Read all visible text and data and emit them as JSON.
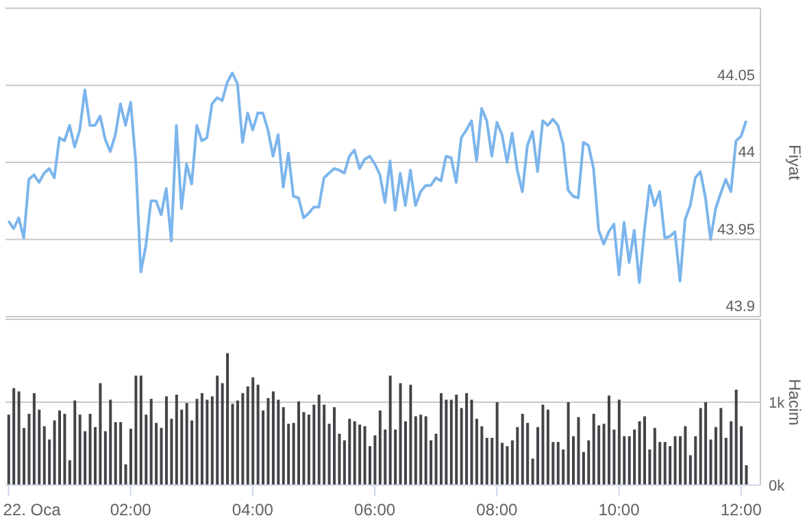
{
  "chart_data": [
    {
      "type": "line",
      "ylabel": "Fiyat",
      "color": "#7cb5ec",
      "marker": "none",
      "grid": "y",
      "tick_labels": "y",
      "xlim": [
        "--01-21T23:57",
        "--01-22T12:19"
      ],
      "ylim": [
        43.9,
        44.1
      ],
      "yticks": [
        43.9,
        43.95,
        44,
        44.05
      ],
      "x": [
        "--01-22T00:00",
        "--01-22T00:05",
        "--01-22T00:10",
        "--01-22T00:15",
        "--01-22T00:20",
        "--01-22T00:25",
        "--01-22T00:30",
        "--01-22T00:35",
        "--01-22T00:40",
        "--01-22T00:45",
        "--01-22T00:50",
        "--01-22T00:55",
        "--01-22T01:00",
        "--01-22T01:05",
        "--01-22T01:10",
        "--01-22T01:15",
        "--01-22T01:20",
        "--01-22T01:25",
        "--01-22T01:30",
        "--01-22T01:35",
        "--01-22T01:40",
        "--01-22T01:45",
        "--01-22T01:50",
        "--01-22T01:55",
        "--01-22T02:00",
        "--01-22T02:05",
        "--01-22T02:10",
        "--01-22T02:15",
        "--01-22T02:20",
        "--01-22T02:25",
        "--01-22T02:30",
        "--01-22T02:35",
        "--01-22T02:40",
        "--01-22T02:45",
        "--01-22T02:50",
        "--01-22T02:55",
        "--01-22T03:00",
        "--01-22T03:05",
        "--01-22T03:10",
        "--01-22T03:15",
        "--01-22T03:20",
        "--01-22T03:25",
        "--01-22T03:30",
        "--01-22T03:35",
        "--01-22T03:40",
        "--01-22T03:45",
        "--01-22T03:50",
        "--01-22T03:55",
        "--01-22T04:00",
        "--01-22T04:05",
        "--01-22T04:10",
        "--01-22T04:15",
        "--01-22T04:20",
        "--01-22T04:25",
        "--01-22T04:30",
        "--01-22T04:35",
        "--01-22T04:40",
        "--01-22T04:45",
        "--01-22T04:50",
        "--01-22T04:55",
        "--01-22T05:00",
        "--01-22T05:05",
        "--01-22T05:10",
        "--01-22T05:15",
        "--01-22T05:20",
        "--01-22T05:25",
        "--01-22T05:30",
        "--01-22T05:35",
        "--01-22T05:40",
        "--01-22T05:45",
        "--01-22T05:50",
        "--01-22T05:55",
        "--01-22T06:00",
        "--01-22T06:05",
        "--01-22T06:10",
        "--01-22T06:15",
        "--01-22T06:20",
        "--01-22T06:25",
        "--01-22T06:30",
        "--01-22T06:35",
        "--01-22T06:40",
        "--01-22T06:45",
        "--01-22T06:50",
        "--01-22T06:55",
        "--01-22T07:00",
        "--01-22T07:05",
        "--01-22T07:10",
        "--01-22T07:15",
        "--01-22T07:20",
        "--01-22T07:25",
        "--01-22T07:30",
        "--01-22T07:35",
        "--01-22T07:40",
        "--01-22T07:45",
        "--01-22T07:50",
        "--01-22T07:55",
        "--01-22T08:00",
        "--01-22T08:05",
        "--01-22T08:10",
        "--01-22T08:15",
        "--01-22T08:20",
        "--01-22T08:25",
        "--01-22T08:30",
        "--01-22T08:35",
        "--01-22T08:40",
        "--01-22T08:45",
        "--01-22T08:50",
        "--01-22T08:55",
        "--01-22T09:00",
        "--01-22T09:05",
        "--01-22T09:10",
        "--01-22T09:15",
        "--01-22T09:20",
        "--01-22T09:25",
        "--01-22T09:30",
        "--01-22T09:35",
        "--01-22T09:40",
        "--01-22T09:45",
        "--01-22T09:50",
        "--01-22T09:55",
        "--01-22T10:00",
        "--01-22T10:05",
        "--01-22T10:10",
        "--01-22T10:15",
        "--01-22T10:20",
        "--01-22T10:25",
        "--01-22T10:30",
        "--01-22T10:35",
        "--01-22T10:40",
        "--01-22T10:45",
        "--01-22T10:50",
        "--01-22T10:55",
        "--01-22T11:00",
        "--01-22T11:05",
        "--01-22T11:10",
        "--01-22T11:15",
        "--01-22T11:20",
        "--01-22T11:25",
        "--01-22T11:30",
        "--01-22T11:35",
        "--01-22T11:40",
        "--01-22T11:45",
        "--01-22T11:50",
        "--01-22T11:55",
        "--01-22T12:00",
        "--01-22T12:05"
      ],
      "values": [
        43.962,
        43.957,
        43.964,
        43.951,
        43.989,
        43.992,
        43.987,
        43.993,
        43.996,
        43.99,
        44.016,
        44.014,
        44.024,
        44.01,
        44.021,
        44.047,
        44.024,
        44.024,
        44.03,
        44.015,
        44.007,
        44.018,
        44.038,
        44.024,
        44.039,
        44.001,
        43.929,
        43.946,
        43.975,
        43.975,
        43.966,
        43.983,
        43.949,
        44.024,
        43.97,
        43.999,
        43.986,
        44.024,
        44.014,
        44.016,
        44.038,
        44.042,
        44.04,
        44.052,
        44.058,
        44.051,
        44.013,
        44.032,
        44.021,
        44.032,
        44.032,
        44.021,
        44.004,
        44.018,
        43.984,
        44.006,
        43.978,
        43.977,
        43.964,
        43.967,
        43.971,
        43.971,
        43.99,
        43.993,
        43.996,
        43.995,
        43.993,
        44.004,
        44.008,
        43.996,
        44.002,
        44.004,
        43.999,
        43.992,
        43.974,
        44.001,
        43.969,
        43.993,
        43.972,
        43.995,
        43.972,
        43.981,
        43.985,
        43.985,
        43.99,
        43.988,
        44.004,
        44.003,
        43.987,
        44.016,
        44.021,
        44.027,
        44.001,
        44.035,
        44.027,
        44.004,
        44.026,
        44.018,
        44.0,
        44.019,
        43.995,
        43.981,
        44.011,
        44.02,
        43.994,
        44.027,
        44.024,
        44.028,
        44.024,
        44.012,
        43.982,
        43.978,
        43.977,
        44.013,
        44.011,
        43.996,
        43.956,
        43.947,
        43.955,
        43.96,
        43.927,
        43.961,
        43.935,
        43.956,
        43.922,
        43.956,
        43.985,
        43.972,
        43.981,
        43.951,
        43.952,
        43.955,
        43.923,
        43.963,
        43.972,
        43.99,
        43.994,
        43.977,
        43.95,
        43.97,
        43.98,
        43.989,
        43.981,
        44.014,
        44.017,
        44.027
      ]
    },
    {
      "type": "bar",
      "ylabel": "Hacim",
      "color": "#434348",
      "grid": "y",
      "xlim": [
        "--01-21T23:57",
        "--01-22T12:19"
      ],
      "xticks": [
        {
          "value": "--01-22T00:00",
          "label": "22. Oca"
        },
        {
          "value": "--01-22T02:00",
          "label": "02:00"
        },
        {
          "value": "--01-22T04:00",
          "label": "04:00"
        },
        {
          "value": "--01-22T06:00",
          "label": "06:00"
        },
        {
          "value": "--01-22T08:00",
          "label": "08:00"
        },
        {
          "value": "--01-22T10:00",
          "label": "10:00"
        },
        {
          "value": "--01-22T12:00",
          "label": "12:00"
        }
      ],
      "ylim": [
        0,
        2000
      ],
      "yticks": [
        {
          "value": 0,
          "label": "0k"
        },
        {
          "value": 1000,
          "label": "1k"
        }
      ],
      "x": [
        "--01-22T00:00",
        "--01-22T00:05",
        "--01-22T00:10",
        "--01-22T00:15",
        "--01-22T00:20",
        "--01-22T00:25",
        "--01-22T00:30",
        "--01-22T00:35",
        "--01-22T00:40",
        "--01-22T00:45",
        "--01-22T00:50",
        "--01-22T00:55",
        "--01-22T01:00",
        "--01-22T01:05",
        "--01-22T01:10",
        "--01-22T01:15",
        "--01-22T01:20",
        "--01-22T01:25",
        "--01-22T01:30",
        "--01-22T01:35",
        "--01-22T01:40",
        "--01-22T01:45",
        "--01-22T01:50",
        "--01-22T01:55",
        "--01-22T02:00",
        "--01-22T02:05",
        "--01-22T02:10",
        "--01-22T02:15",
        "--01-22T02:20",
        "--01-22T02:25",
        "--01-22T02:30",
        "--01-22T02:35",
        "--01-22T02:40",
        "--01-22T02:45",
        "--01-22T02:50",
        "--01-22T02:55",
        "--01-22T03:00",
        "--01-22T03:05",
        "--01-22T03:10",
        "--01-22T03:15",
        "--01-22T03:20",
        "--01-22T03:25",
        "--01-22T03:30",
        "--01-22T03:35",
        "--01-22T03:40",
        "--01-22T03:45",
        "--01-22T03:50",
        "--01-22T03:55",
        "--01-22T04:00",
        "--01-22T04:05",
        "--01-22T04:10",
        "--01-22T04:15",
        "--01-22T04:20",
        "--01-22T04:25",
        "--01-22T04:30",
        "--01-22T04:35",
        "--01-22T04:40",
        "--01-22T04:45",
        "--01-22T04:50",
        "--01-22T04:55",
        "--01-22T05:00",
        "--01-22T05:05",
        "--01-22T05:10",
        "--01-22T05:15",
        "--01-22T05:20",
        "--01-22T05:25",
        "--01-22T05:30",
        "--01-22T05:35",
        "--01-22T05:40",
        "--01-22T05:45",
        "--01-22T05:50",
        "--01-22T05:55",
        "--01-22T06:00",
        "--01-22T06:05",
        "--01-22T06:10",
        "--01-22T06:15",
        "--01-22T06:20",
        "--01-22T06:25",
        "--01-22T06:30",
        "--01-22T06:35",
        "--01-22T06:40",
        "--01-22T06:45",
        "--01-22T06:50",
        "--01-22T06:55",
        "--01-22T07:00",
        "--01-22T07:05",
        "--01-22T07:10",
        "--01-22T07:15",
        "--01-22T07:20",
        "--01-22T07:25",
        "--01-22T07:30",
        "--01-22T07:35",
        "--01-22T07:40",
        "--01-22T07:45",
        "--01-22T07:50",
        "--01-22T07:55",
        "--01-22T08:00",
        "--01-22T08:05",
        "--01-22T08:10",
        "--01-22T08:15",
        "--01-22T08:20",
        "--01-22T08:25",
        "--01-22T08:30",
        "--01-22T08:35",
        "--01-22T08:40",
        "--01-22T08:45",
        "--01-22T08:50",
        "--01-22T08:55",
        "--01-22T09:00",
        "--01-22T09:05",
        "--01-22T09:10",
        "--01-22T09:15",
        "--01-22T09:20",
        "--01-22T09:25",
        "--01-22T09:30",
        "--01-22T09:35",
        "--01-22T09:40",
        "--01-22T09:45",
        "--01-22T09:50",
        "--01-22T09:55",
        "--01-22T10:00",
        "--01-22T10:05",
        "--01-22T10:10",
        "--01-22T10:15",
        "--01-22T10:20",
        "--01-22T10:25",
        "--01-22T10:30",
        "--01-22T10:35",
        "--01-22T10:40",
        "--01-22T10:45",
        "--01-22T10:50",
        "--01-22T10:55",
        "--01-22T11:00",
        "--01-22T11:05",
        "--01-22T11:10",
        "--01-22T11:15",
        "--01-22T11:20",
        "--01-22T11:25",
        "--01-22T11:30",
        "--01-22T11:35",
        "--01-22T11:40",
        "--01-22T11:45",
        "--01-22T11:50",
        "--01-22T11:55",
        "--01-22T12:00",
        "--01-22T12:05"
      ],
      "values": [
        850,
        1170,
        1130,
        690,
        860,
        1110,
        910,
        710,
        550,
        780,
        900,
        860,
        300,
        1020,
        850,
        650,
        860,
        700,
        1230,
        650,
        1030,
        760,
        760,
        250,
        680,
        1320,
        1320,
        850,
        1040,
        750,
        690,
        1070,
        800,
        1090,
        910,
        990,
        780,
        1040,
        1110,
        1030,
        1070,
        1320,
        1230,
        1590,
        980,
        1020,
        1110,
        1190,
        1300,
        1210,
        900,
        1050,
        1130,
        1030,
        940,
        740,
        750,
        1010,
        880,
        850,
        970,
        1090,
        970,
        740,
        940,
        620,
        540,
        800,
        770,
        730,
        710,
        470,
        600,
        900,
        670,
        1320,
        670,
        1230,
        770,
        1210,
        830,
        850,
        830,
        540,
        620,
        1110,
        1030,
        1030,
        1090,
        930,
        1110,
        1030,
        800,
        710,
        570,
        570,
        1000,
        510,
        470,
        540,
        700,
        860,
        750,
        320,
        700,
        970,
        910,
        520,
        520,
        430,
        1000,
        590,
        820,
        400,
        540,
        860,
        720,
        740,
        1080,
        670,
        1030,
        590,
        590,
        670,
        770,
        830,
        430,
        690,
        520,
        520,
        470,
        590,
        590,
        710,
        360,
        590,
        930,
        1000,
        550,
        700,
        930,
        570,
        770,
        1150,
        710,
        240
      ]
    }
  ]
}
